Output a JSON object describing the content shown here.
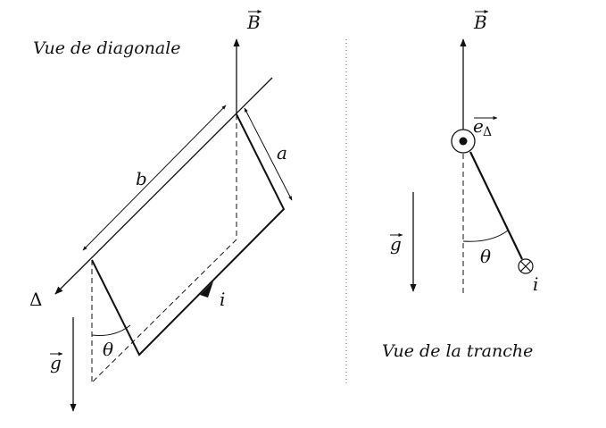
{
  "left_view": {
    "title": "Vue de diagonale",
    "field_label": "B",
    "axis_label": "Δ",
    "length_b": "b",
    "length_a": "a",
    "current": "i",
    "angle": "θ",
    "gravity": "g"
  },
  "right_view": {
    "title": "Vue de la tranche",
    "field_label": "B",
    "unit_vector": "e",
    "unit_vector_sub": "Δ",
    "gravity": "g",
    "angle": "θ",
    "current": "i"
  }
}
